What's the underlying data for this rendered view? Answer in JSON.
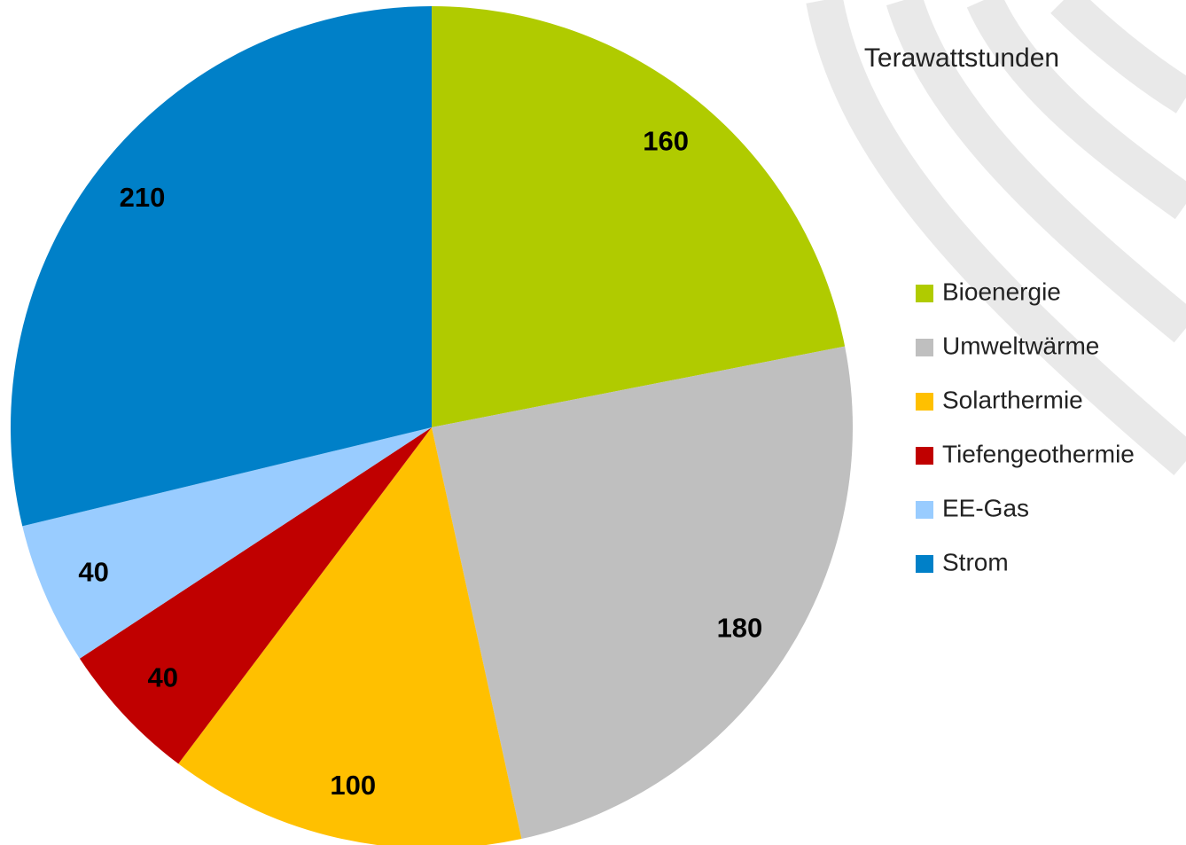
{
  "chart_data": {
    "type": "pie",
    "title": "Terawattstunden",
    "categories": [
      "Bioenergie",
      "Umweltwärme",
      "Solarthermie",
      "Tiefengeothermie",
      "EE-Gas",
      "Strom"
    ],
    "values": [
      160,
      180,
      100,
      40,
      40,
      210
    ],
    "colors": [
      "#b0cb00",
      "#bfbfbf",
      "#ffc000",
      "#c00000",
      "#99ccff",
      "#0080c8"
    ],
    "legend": "right"
  }
}
